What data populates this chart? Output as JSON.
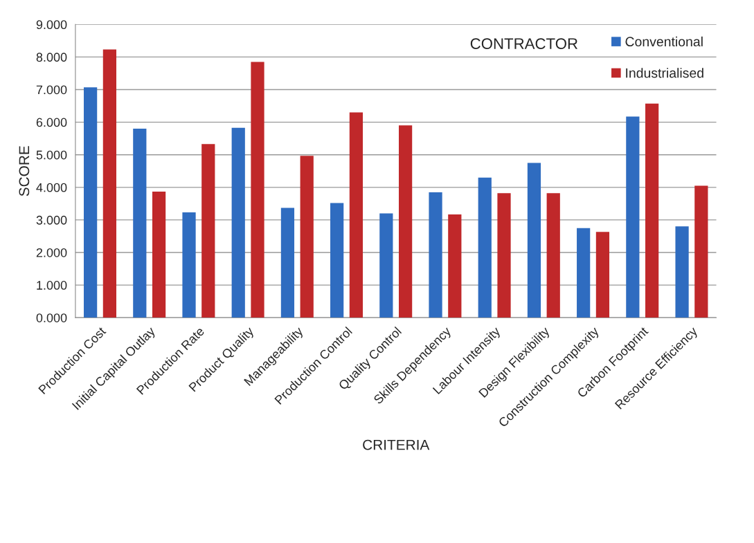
{
  "chart_data": {
    "type": "bar",
    "title": "CONTRACTOR",
    "xlabel": "CRITERIA",
    "ylabel": "SCORE",
    "categories": [
      "Production Cost",
      "Initial Capital Outlay",
      "Production Rate",
      "Product Quality",
      "Manageability",
      "Production Control",
      "Quality Control",
      "Skills Dependency",
      "Labour Intensity",
      "Design Flexibility",
      "Construction Complexity",
      "Carbon Footprint",
      "Resource Efficiency"
    ],
    "series": [
      {
        "name": "Conventional",
        "color": "#2f6cc0",
        "values": [
          7.07,
          5.8,
          3.23,
          5.83,
          3.37,
          3.52,
          3.2,
          3.85,
          4.3,
          4.75,
          2.75,
          6.17,
          2.8
        ]
      },
      {
        "name": "Industrialised",
        "color": "#c0282a",
        "values": [
          8.23,
          3.87,
          5.33,
          7.85,
          4.97,
          6.3,
          5.9,
          3.17,
          3.82,
          3.82,
          2.63,
          6.57,
          4.05
        ]
      }
    ],
    "ylim": [
      0,
      9
    ],
    "yticks": [
      {
        "value": 0,
        "label": "0.000"
      },
      {
        "value": 1,
        "label": "1.000"
      },
      {
        "value": 2,
        "label": "2.000"
      },
      {
        "value": 3,
        "label": "3.000"
      },
      {
        "value": 4,
        "label": "4.000"
      },
      {
        "value": 5,
        "label": "5.000"
      },
      {
        "value": 6,
        "label": "6.000"
      },
      {
        "value": 7,
        "label": "7.000"
      },
      {
        "value": 8,
        "label": "8.000"
      },
      {
        "value": 9,
        "label": "9.000"
      }
    ],
    "grid": "y",
    "legend": "top right"
  }
}
